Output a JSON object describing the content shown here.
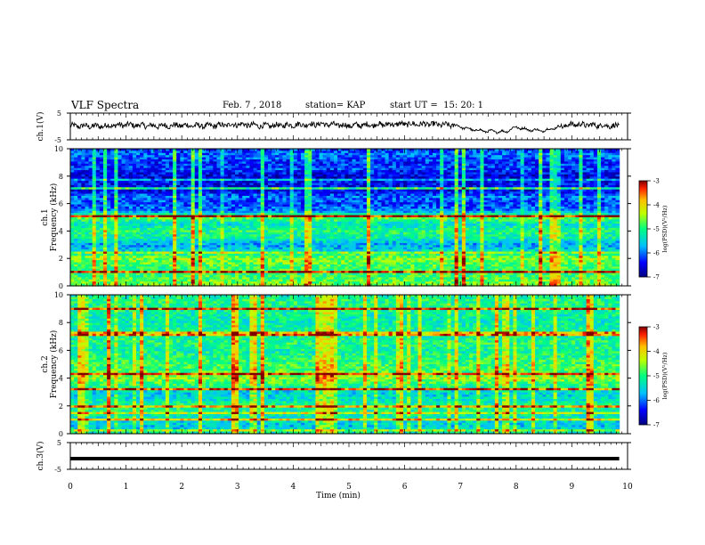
{
  "header": {
    "title": "VLF Spectra",
    "date": "Feb. 7 , 2018",
    "station": "station= KAP",
    "start": "start UT =  15: 20: 1"
  },
  "colors": {
    "background": "#ffffff",
    "waveform": "#000000",
    "ch3_line": "#000000"
  },
  "chart_data": [
    {
      "type": "line",
      "name": "ch1-waveform",
      "ylabel": "ch.1(V)",
      "ylim": [
        -5,
        5
      ],
      "yticks": [
        "5",
        "-5"
      ],
      "xlim": [
        0,
        10
      ],
      "baseline_pattern": [
        [
          0.0,
          0.2
        ],
        [
          0.5,
          0.1
        ],
        [
          1.0,
          0.6
        ],
        [
          1.5,
          0.2
        ],
        [
          2.0,
          0.4
        ],
        [
          2.5,
          0.2
        ],
        [
          3.0,
          0.8
        ],
        [
          3.5,
          0.2
        ],
        [
          4.0,
          0.6
        ],
        [
          4.5,
          0.9
        ],
        [
          5.0,
          0.3
        ],
        [
          5.5,
          0.7
        ],
        [
          6.0,
          0.9
        ],
        [
          6.5,
          0.8
        ],
        [
          6.9,
          0.4
        ],
        [
          7.2,
          -1.2
        ],
        [
          7.5,
          -1.8
        ],
        [
          7.8,
          -2.0
        ],
        [
          8.0,
          -0.2
        ],
        [
          8.2,
          -1.2
        ],
        [
          8.5,
          -1.6
        ],
        [
          8.7,
          -0.5
        ],
        [
          9.0,
          0.8
        ],
        [
          9.5,
          0.4
        ],
        [
          9.8,
          0.2
        ]
      ]
    },
    {
      "type": "heatmap",
      "name": "ch1-spectrogram",
      "ylabel": "ch.1 Frequency (kHz)",
      "xlim": [
        0,
        10
      ],
      "ylim": [
        0,
        10
      ],
      "yticks": [
        "0",
        "2",
        "4",
        "6",
        "8",
        "10"
      ],
      "colorbar": {
        "label": "log(PSD)(V²/Hz)",
        "ticks": [
          "-3",
          "-4",
          "-5",
          "-6",
          "-7"
        ],
        "range": [
          -7,
          -3
        ]
      },
      "band_levels_by_kHz": [
        [
          0.0,
          -4.6
        ],
        [
          0.5,
          -4.8
        ],
        [
          1.0,
          -5.0
        ],
        [
          1.5,
          -4.8
        ],
        [
          2.0,
          -4.5
        ],
        [
          2.5,
          -5.4
        ],
        [
          3.0,
          -5.8
        ],
        [
          3.5,
          -5.2
        ],
        [
          4.0,
          -5.0
        ],
        [
          4.5,
          -5.4
        ],
        [
          5.0,
          -4.6
        ],
        [
          5.5,
          -6.0
        ],
        [
          6.0,
          -6.2
        ],
        [
          6.5,
          -6.0
        ],
        [
          7.0,
          -6.6
        ],
        [
          7.5,
          -6.4
        ],
        [
          8.0,
          -6.6
        ],
        [
          8.5,
          -6.2
        ],
        [
          9.0,
          -6.3
        ],
        [
          9.5,
          -6.0
        ],
        [
          10.0,
          -6.2
        ]
      ],
      "spheric_rate": 0.18
    },
    {
      "type": "heatmap",
      "name": "ch2-spectrogram",
      "ylabel": "ch.2 Frequency (kHz)",
      "xlim": [
        0,
        10
      ],
      "ylim": [
        0,
        10
      ],
      "yticks": [
        "0",
        "2",
        "4",
        "6",
        "8",
        "10"
      ],
      "colorbar": {
        "label": "log(PSD)(V²/Hz)",
        "ticks": [
          "-3",
          "-4",
          "-5",
          "-6",
          "-7"
        ],
        "range": [
          -7,
          -3
        ]
      },
      "band_levels_by_kHz": [
        [
          0.0,
          -5.2
        ],
        [
          0.5,
          -5.6
        ],
        [
          1.0,
          -5.4
        ],
        [
          1.5,
          -5.2
        ],
        [
          2.0,
          -5.0
        ],
        [
          2.5,
          -5.4
        ],
        [
          3.0,
          -5.5
        ],
        [
          3.5,
          -5.0
        ],
        [
          4.0,
          -4.5
        ],
        [
          4.5,
          -4.8
        ],
        [
          5.0,
          -4.9
        ],
        [
          5.5,
          -5.0
        ],
        [
          6.0,
          -5.2
        ],
        [
          6.5,
          -5.0
        ],
        [
          7.0,
          -5.2
        ],
        [
          7.5,
          -5.1
        ],
        [
          8.0,
          -5.3
        ],
        [
          8.5,
          -5.2
        ],
        [
          9.0,
          -5.1
        ],
        [
          9.5,
          -5.0
        ],
        [
          10.0,
          -5.2
        ]
      ],
      "spheric_rate": 0.22
    },
    {
      "type": "line",
      "name": "ch3-waveform",
      "ylabel": "ch.3(V)",
      "ylim": [
        -5,
        5
      ],
      "yticks": [
        "5",
        "-5"
      ],
      "xlim": [
        0,
        10
      ],
      "constant_value": -1.0
    }
  ],
  "xaxis": {
    "label": "Time (min)",
    "ticks": [
      "0",
      "1",
      "2",
      "3",
      "4",
      "5",
      "6",
      "7",
      "8",
      "9",
      "10"
    ]
  }
}
